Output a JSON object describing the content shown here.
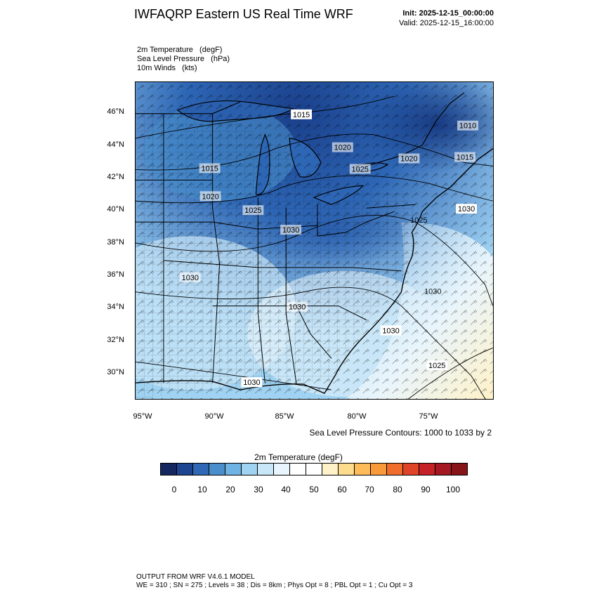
{
  "header": {
    "title": "IWFAQRP Eastern US Real Time WRF",
    "init": "Init: 2025-12-15_00:00:00",
    "valid": "Valid: 2025-12-15_16:00:00"
  },
  "fields": [
    "2m Temperature   (degF)",
    "Sea Level Pressure   (hPa)",
    "10m Winds   (kts)"
  ],
  "axes": {
    "lat_labels": [
      "46°N",
      "44°N",
      "42°N",
      "40°N",
      "38°N",
      "36°N",
      "34°N",
      "32°N",
      "30°N"
    ],
    "lon_labels": [
      "95°W",
      "90°W",
      "85°W",
      "80°W",
      "75°W"
    ]
  },
  "contour_note": "Sea Level Pressure Contours: 1000 to 1033 by 2",
  "pressure_labels": [
    "1015",
    "1020",
    "1025",
    "1030",
    "1030",
    "1010",
    "1015",
    "1020",
    "1020",
    "1025",
    "1030",
    "1030",
    "1030",
    "1025",
    "1030",
    "1015",
    "1025",
    "1030"
  ],
  "colorbar": {
    "title": "2m Temperature  (degF)",
    "colors": [
      "#15275e",
      "#1e4690",
      "#2f68b4",
      "#4a8fcc",
      "#6fb3e4",
      "#a0d2f2",
      "#c8e6f8",
      "#e9f5fc",
      "#ffffff",
      "#ffffff",
      "#fff2c8",
      "#fedc8e",
      "#fdbb59",
      "#f99a3a",
      "#f06e2c",
      "#e04428",
      "#c52126",
      "#a51722",
      "#861419"
    ],
    "labels": [
      "0",
      "10",
      "20",
      "30",
      "40",
      "50",
      "60",
      "70",
      "80",
      "90",
      "100"
    ]
  },
  "footer": {
    "line1": "OUTPUT FROM WRF V4.6.1 MODEL",
    "line2": "WE = 310 ; SN = 275 ; Levels = 38 ; Dis = 8km ; Phys Opt = 8 ; PBL Opt = 1 ; Cu Opt = 3"
  }
}
